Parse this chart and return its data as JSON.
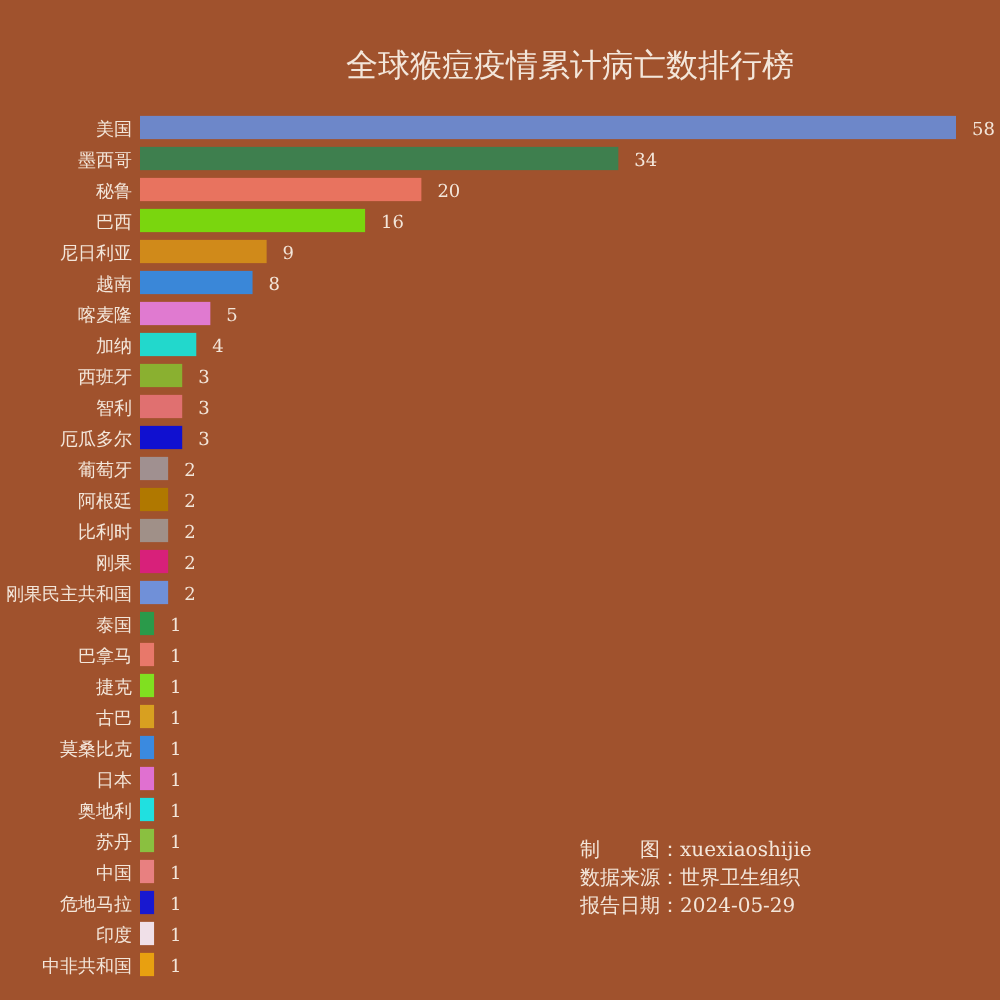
{
  "chart_data": {
    "type": "bar",
    "orientation": "horizontal",
    "data_labels": true,
    "title": "全球猴痘疫情累计病亡数排行榜",
    "categories": [
      "美国",
      "墨西哥",
      "秘鲁",
      "巴西",
      "尼日利亚",
      "越南",
      "喀麦隆",
      "加纳",
      "西班牙",
      "智利",
      "厄瓜多尔",
      "葡萄牙",
      "阿根廷",
      "比利时",
      "刚果",
      "刚果民主共和国",
      "泰国",
      "巴拿马",
      "捷克",
      "古巴",
      "莫桑比克",
      "日本",
      "奥地利",
      "苏丹",
      "中国",
      "危地马拉",
      "印度",
      "中非共和国"
    ],
    "values": [
      58,
      34,
      20,
      16,
      9,
      8,
      5,
      4,
      3,
      3,
      3,
      2,
      2,
      2,
      2,
      2,
      1,
      1,
      1,
      1,
      1,
      1,
      1,
      1,
      1,
      1,
      1,
      1
    ],
    "colors": [
      "#6d87c9",
      "#3e7f4e",
      "#e8735f",
      "#7ad60e",
      "#d08a1a",
      "#3a87d8",
      "#e07ad0",
      "#22d8cc",
      "#8ab030",
      "#e07070",
      "#1010d0",
      "#a09090",
      "#b07800",
      "#a09088",
      "#d8207a",
      "#7090d8",
      "#2a9a4a",
      "#e8786a",
      "#80e020",
      "#d8a020",
      "#3a8ae0",
      "#e070d0",
      "#20e0e0",
      "#8ac040",
      "#e88080",
      "#1818d0",
      "#f0e0e8",
      "#e8a010"
    ],
    "annotations": [
      "制　　图：xuexiaoshijie",
      "数据来源：世界卫生组织",
      "报告日期：2024-05-29"
    ]
  }
}
